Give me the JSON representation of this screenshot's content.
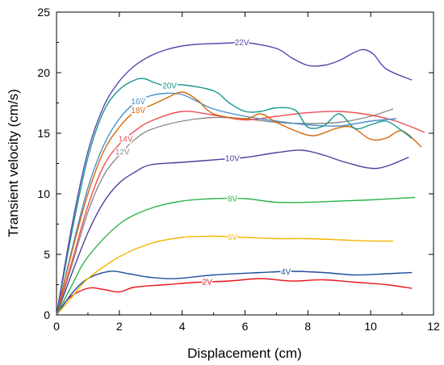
{
  "chart_data": {
    "type": "line",
    "xlabel": "Displacement (cm)",
    "ylabel": "Transient velocity (cm/s)",
    "xlim": [
      0,
      12
    ],
    "ylim": [
      0,
      25
    ],
    "xticks": [
      0,
      2,
      4,
      6,
      8,
      10,
      12
    ],
    "yticks": [
      0,
      5,
      10,
      15,
      20,
      25
    ],
    "grid": false,
    "legend": "inline labels on curves",
    "series": [
      {
        "name": "2V",
        "color": "#e8151b",
        "label_x": 4.8,
        "x": [
          0,
          0.4,
          1.0,
          1.5,
          2.0,
          2.5,
          3.5,
          4.5,
          5.5,
          6.5,
          7.5,
          8.5,
          9.5,
          10.5,
          11.3
        ],
        "y": [
          0,
          1.4,
          2.2,
          2.1,
          1.9,
          2.3,
          2.5,
          2.7,
          2.8,
          3.0,
          2.8,
          2.9,
          2.7,
          2.5,
          2.2
        ]
      },
      {
        "name": "4V",
        "color": "#1f4e9c",
        "label_x": 7.3,
        "x": [
          0,
          0.5,
          1.0,
          1.7,
          2.3,
          3.0,
          3.8,
          5.0,
          6.5,
          7.5,
          8.5,
          9.5,
          10.5,
          11.3
        ],
        "y": [
          0,
          1.8,
          3.0,
          3.6,
          3.4,
          3.1,
          3.0,
          3.3,
          3.5,
          3.6,
          3.5,
          3.3,
          3.4,
          3.5
        ]
      },
      {
        "name": "6V",
        "color": "#f5b400",
        "label_x": 5.6,
        "x": [
          0,
          0.5,
          1.0,
          2.0,
          3.0,
          4.0,
          5.0,
          6.0,
          7.0,
          8.0,
          9.0,
          10.0,
          10.7
        ],
        "y": [
          0,
          1.5,
          3.0,
          4.8,
          5.9,
          6.4,
          6.5,
          6.4,
          6.3,
          6.3,
          6.2,
          6.1,
          6.1
        ]
      },
      {
        "name": "8V",
        "color": "#2db34a",
        "label_x": 5.6,
        "x": [
          0,
          0.5,
          1.0,
          2.0,
          3.0,
          4.0,
          5.0,
          6.0,
          7.0,
          8.0,
          9.0,
          10.0,
          11.4
        ],
        "y": [
          0,
          2.5,
          4.8,
          7.5,
          8.8,
          9.4,
          9.6,
          9.6,
          9.3,
          9.3,
          9.4,
          9.5,
          9.7
        ]
      },
      {
        "name": "10V",
        "color": "#4b3f9a",
        "label_x": 5.6,
        "x": [
          0,
          0.5,
          1.0,
          1.5,
          2.0,
          2.5,
          3.0,
          4.0,
          5.0,
          6.0,
          7.0,
          7.8,
          8.5,
          9.2,
          10.2,
          11.2
        ],
        "y": [
          0,
          3.5,
          6.8,
          9.3,
          10.9,
          11.8,
          12.4,
          12.6,
          12.8,
          13.0,
          13.4,
          13.6,
          13.2,
          12.6,
          12.1,
          13.0
        ]
      },
      {
        "name": "12V",
        "color": "#8c8c8c",
        "label_x": 2.1,
        "x": [
          0,
          0.5,
          1.0,
          1.5,
          2.0,
          2.5,
          3.0,
          4.0,
          5.0,
          6.0,
          7.0,
          8.0,
          9.0,
          10.0,
          10.7
        ],
        "y": [
          0,
          4.2,
          8.5,
          11.5,
          13.2,
          14.5,
          15.3,
          16.0,
          16.3,
          16.2,
          15.9,
          15.8,
          15.9,
          16.4,
          17.0
        ]
      },
      {
        "name": "14V",
        "color": "#ef4e55",
        "label_x": 2.2,
        "x": [
          0,
          0.5,
          1.0,
          1.5,
          2.0,
          2.5,
          3.0,
          4.0,
          5.0,
          6.0,
          7.0,
          8.0,
          9.0,
          10.0,
          10.8,
          11.7
        ],
        "y": [
          0,
          4.5,
          9.0,
          12.3,
          14.1,
          15.2,
          16.0,
          16.8,
          16.5,
          16.1,
          16.4,
          16.7,
          16.8,
          16.5,
          16.0,
          15.1
        ]
      },
      {
        "name": "16V",
        "color": "#4a8ec9",
        "label_x": 2.6,
        "x": [
          0,
          0.5,
          1.0,
          1.5,
          2.0,
          2.5,
          3.0,
          3.5,
          4.0,
          4.5,
          5.0,
          6.0,
          7.0,
          8.0,
          9.0,
          10.0,
          10.8
        ],
        "y": [
          0,
          5.5,
          10.5,
          14.0,
          16.2,
          17.5,
          18.1,
          18.3,
          18.2,
          17.6,
          17.0,
          16.4,
          16.0,
          15.7,
          15.6,
          16.0,
          16.2
        ]
      },
      {
        "name": "18V",
        "color": "#d2690a",
        "label_x": 2.6,
        "x": [
          0,
          0.5,
          1.0,
          1.5,
          2.0,
          2.5,
          3.0,
          3.5,
          4.0,
          4.5,
          5.0,
          6.0,
          6.5,
          7.0,
          7.6,
          8.2,
          8.9,
          9.4,
          10.0,
          10.5,
          11.0,
          11.6
        ],
        "y": [
          0,
          5.3,
          10.0,
          13.5,
          15.5,
          16.8,
          17.3,
          17.9,
          18.4,
          17.7,
          16.6,
          16.2,
          16.6,
          15.9,
          15.2,
          14.8,
          15.4,
          15.5,
          14.5,
          14.6,
          15.2,
          13.9
        ]
      },
      {
        "name": "20V",
        "color": "#17968f",
        "label_x": 3.6,
        "x": [
          0,
          0.5,
          1.0,
          1.5,
          2.0,
          2.5,
          2.8,
          3.1,
          3.5,
          4.0,
          5.0,
          5.5,
          6.0,
          6.5,
          7.0,
          7.6,
          8.0,
          8.5,
          9.0,
          9.5,
          10.0,
          10.5,
          11.0,
          11.3
        ],
        "y": [
          0,
          7.0,
          13.0,
          16.8,
          18.6,
          19.4,
          19.5,
          19.2,
          18.9,
          19.0,
          18.5,
          17.5,
          16.8,
          16.8,
          17.1,
          16.9,
          15.5,
          15.6,
          16.6,
          15.4,
          15.7,
          16.0,
          15.2,
          14.6
        ]
      },
      {
        "name": "22V",
        "color": "#5448b0",
        "label_x": 5.9,
        "x": [
          0,
          0.5,
          1.0,
          1.5,
          2.0,
          2.5,
          3.0,
          3.5,
          4.0,
          4.5,
          5.0,
          5.5,
          6.0,
          7.0,
          7.5,
          8.0,
          8.5,
          9.0,
          9.5,
          9.8,
          10.1,
          10.5,
          11.3
        ],
        "y": [
          0,
          7.5,
          13.5,
          17.2,
          19.3,
          20.6,
          21.4,
          21.9,
          22.2,
          22.35,
          22.4,
          22.45,
          22.5,
          22.0,
          21.2,
          20.6,
          20.6,
          21.0,
          21.7,
          21.9,
          21.5,
          20.3,
          19.4
        ]
      }
    ]
  }
}
